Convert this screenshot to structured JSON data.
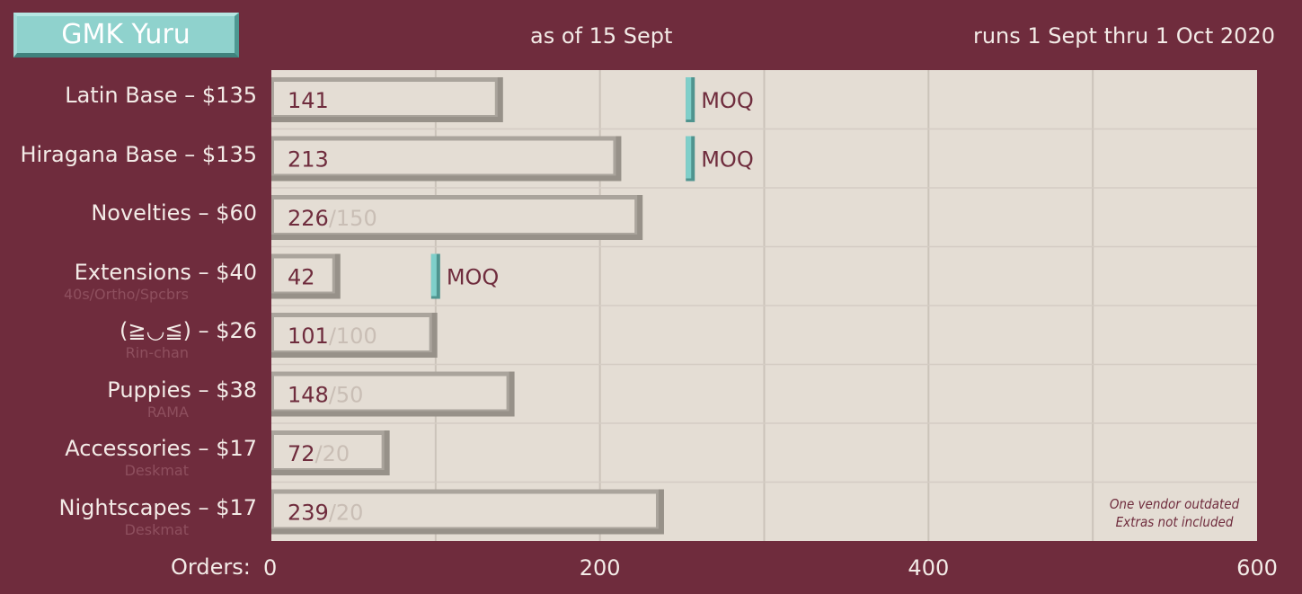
{
  "header": {
    "badge": "GMK Yuru",
    "subtitle": "as of 15 Sept",
    "runs": "runs 1 Sept thru 1 Oct 2020"
  },
  "colors": {
    "background": "#6f2c3d",
    "plot": "#e4ddd4",
    "bar": "#e4ddd4",
    "bar_edge": "#979189",
    "moq_marker": "#7fcfca",
    "value_text": "#6f2c3d",
    "target_text": "#c9beb5"
  },
  "chart_data": {
    "type": "bar",
    "orientation": "horizontal",
    "xlabel": "Orders:",
    "xlim": [
      0,
      600
    ],
    "xticks": [
      0,
      200,
      400,
      600
    ],
    "grid": true,
    "categories": [
      "Latin Base – $135",
      "Hiragana Base – $135",
      "Novelties – $60",
      "Extensions – $40",
      "(≧◡≦) – $26",
      "Puppies – $38",
      "Accessories – $17",
      "Nightscapes – $17"
    ],
    "sublabels": [
      "",
      "",
      "",
      "40s/Ortho/Spcbrs",
      "Rin-chan",
      "RAMA",
      "Deskmat",
      "Deskmat"
    ],
    "values": [
      141,
      213,
      226,
      42,
      101,
      148,
      72,
      239
    ],
    "targets": [
      null,
      null,
      "/150",
      null,
      "/100",
      "/50",
      "/20",
      "/20"
    ],
    "moq": [
      255,
      255,
      null,
      100,
      null,
      null,
      null,
      null
    ],
    "moq_label": "MOQ",
    "annotation": [
      "One vendor outdated",
      "Extras not included"
    ]
  }
}
